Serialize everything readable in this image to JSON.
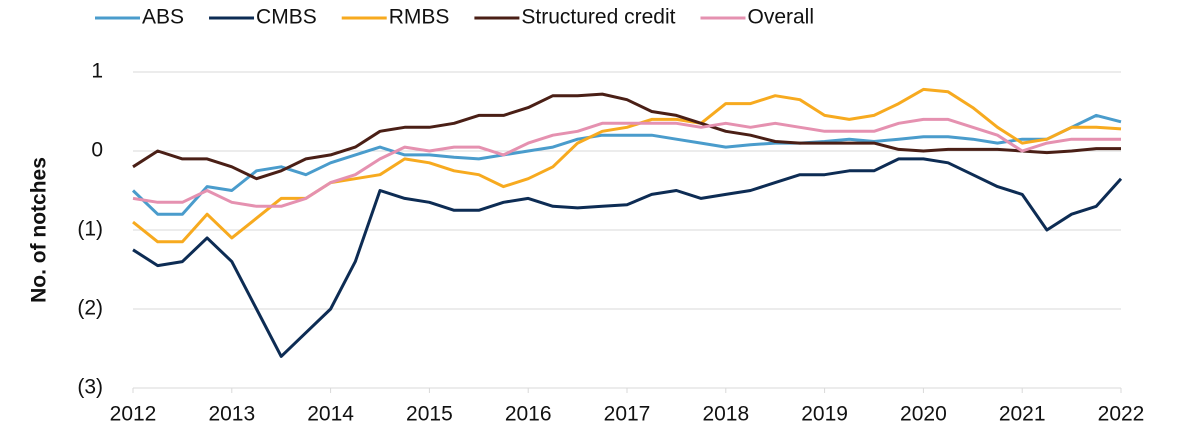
{
  "chart_data": {
    "type": "line",
    "y_label": "No. of notches",
    "x": [
      2012,
      2012.25,
      2012.5,
      2012.75,
      2013,
      2013.25,
      2013.5,
      2013.75,
      2014,
      2014.25,
      2014.5,
      2014.75,
      2015,
      2015.25,
      2015.5,
      2015.75,
      2016,
      2016.25,
      2016.5,
      2016.75,
      2017,
      2017.25,
      2017.5,
      2017.75,
      2018,
      2018.25,
      2018.5,
      2018.75,
      2019,
      2019.25,
      2019.5,
      2019.75,
      2020,
      2020.25,
      2020.5,
      2020.75,
      2021,
      2021.25,
      2021.5,
      2021.75,
      2022
    ],
    "xlim": [
      2012,
      2022
    ],
    "xticks": [
      2012,
      2013,
      2014,
      2015,
      2016,
      2017,
      2018,
      2019,
      2020,
      2021,
      2022
    ],
    "ylim": [
      -3,
      1
    ],
    "yticks": [
      {
        "value": -3,
        "label": "(3)"
      },
      {
        "value": -2,
        "label": "(2)"
      },
      {
        "value": -1,
        "label": "(1)"
      },
      0,
      1
    ],
    "grid": true,
    "legend": "top",
    "series": [
      {
        "name": "ABS",
        "color": "#4a9ccc",
        "values": [
          -0.5,
          -0.8,
          -0.8,
          -0.45,
          -0.5,
          -0.25,
          -0.2,
          -0.3,
          -0.15,
          -0.05,
          0.05,
          -0.05,
          -0.05,
          -0.08,
          -0.1,
          -0.05,
          0,
          0.05,
          0.15,
          0.2,
          0.2,
          0.2,
          0.15,
          0.1,
          0.05,
          0.08,
          0.1,
          0.1,
          0.12,
          0.15,
          0.12,
          0.15,
          0.18,
          0.18,
          0.15,
          0.1,
          0.15,
          0.15,
          0.3,
          0.45,
          0.37
        ]
      },
      {
        "name": "CMBS",
        "color": "#0d2c54",
        "values": [
          -1.25,
          -1.45,
          -1.4,
          -1.1,
          -1.4,
          -2.0,
          -2.6,
          -2.3,
          -2.0,
          -1.4,
          -0.5,
          -0.6,
          -0.65,
          -0.75,
          -0.75,
          -0.65,
          -0.6,
          -0.7,
          -0.72,
          -0.7,
          -0.68,
          -0.55,
          -0.5,
          -0.6,
          -0.55,
          -0.5,
          -0.4,
          -0.3,
          -0.3,
          -0.25,
          -0.25,
          -0.1,
          -0.1,
          -0.15,
          -0.3,
          -0.45,
          -0.55,
          -1.0,
          -0.8,
          -0.7,
          -0.35
        ]
      },
      {
        "name": "RMBS",
        "color": "#f7aa1f",
        "values": [
          -0.9,
          -1.15,
          -1.15,
          -0.8,
          -1.1,
          -0.85,
          -0.6,
          -0.6,
          -0.4,
          -0.35,
          -0.3,
          -0.1,
          -0.15,
          -0.25,
          -0.3,
          -0.45,
          -0.35,
          -0.2,
          0.1,
          0.25,
          0.3,
          0.4,
          0.4,
          0.35,
          0.6,
          0.6,
          0.7,
          0.65,
          0.45,
          0.4,
          0.45,
          0.6,
          0.78,
          0.75,
          0.55,
          0.3,
          0.1,
          0.15,
          0.3,
          0.3,
          0.28
        ]
      },
      {
        "name": "Structured credit",
        "color": "#4a1f16",
        "values": [
          -0.2,
          0,
          -0.1,
          -0.1,
          -0.2,
          -0.35,
          -0.25,
          -0.1,
          -0.05,
          0.05,
          0.25,
          0.3,
          0.3,
          0.35,
          0.45,
          0.45,
          0.55,
          0.7,
          0.7,
          0.72,
          0.65,
          0.5,
          0.45,
          0.35,
          0.25,
          0.2,
          0.12,
          0.1,
          0.1,
          0.1,
          0.1,
          0.02,
          0,
          0.02,
          0.02,
          0.02,
          0,
          -0.02,
          0,
          0.03,
          0.03
        ]
      },
      {
        "name": "Overall",
        "color": "#e591b0",
        "values": [
          -0.6,
          -0.65,
          -0.65,
          -0.5,
          -0.65,
          -0.7,
          -0.7,
          -0.6,
          -0.4,
          -0.3,
          -0.1,
          0.05,
          0,
          0.05,
          0.05,
          -0.05,
          0.1,
          0.2,
          0.25,
          0.35,
          0.35,
          0.35,
          0.35,
          0.3,
          0.35,
          0.3,
          0.35,
          0.3,
          0.25,
          0.25,
          0.25,
          0.35,
          0.4,
          0.4,
          0.3,
          0.2,
          0,
          0.1,
          0.15,
          0.15,
          0.15
        ]
      }
    ]
  }
}
